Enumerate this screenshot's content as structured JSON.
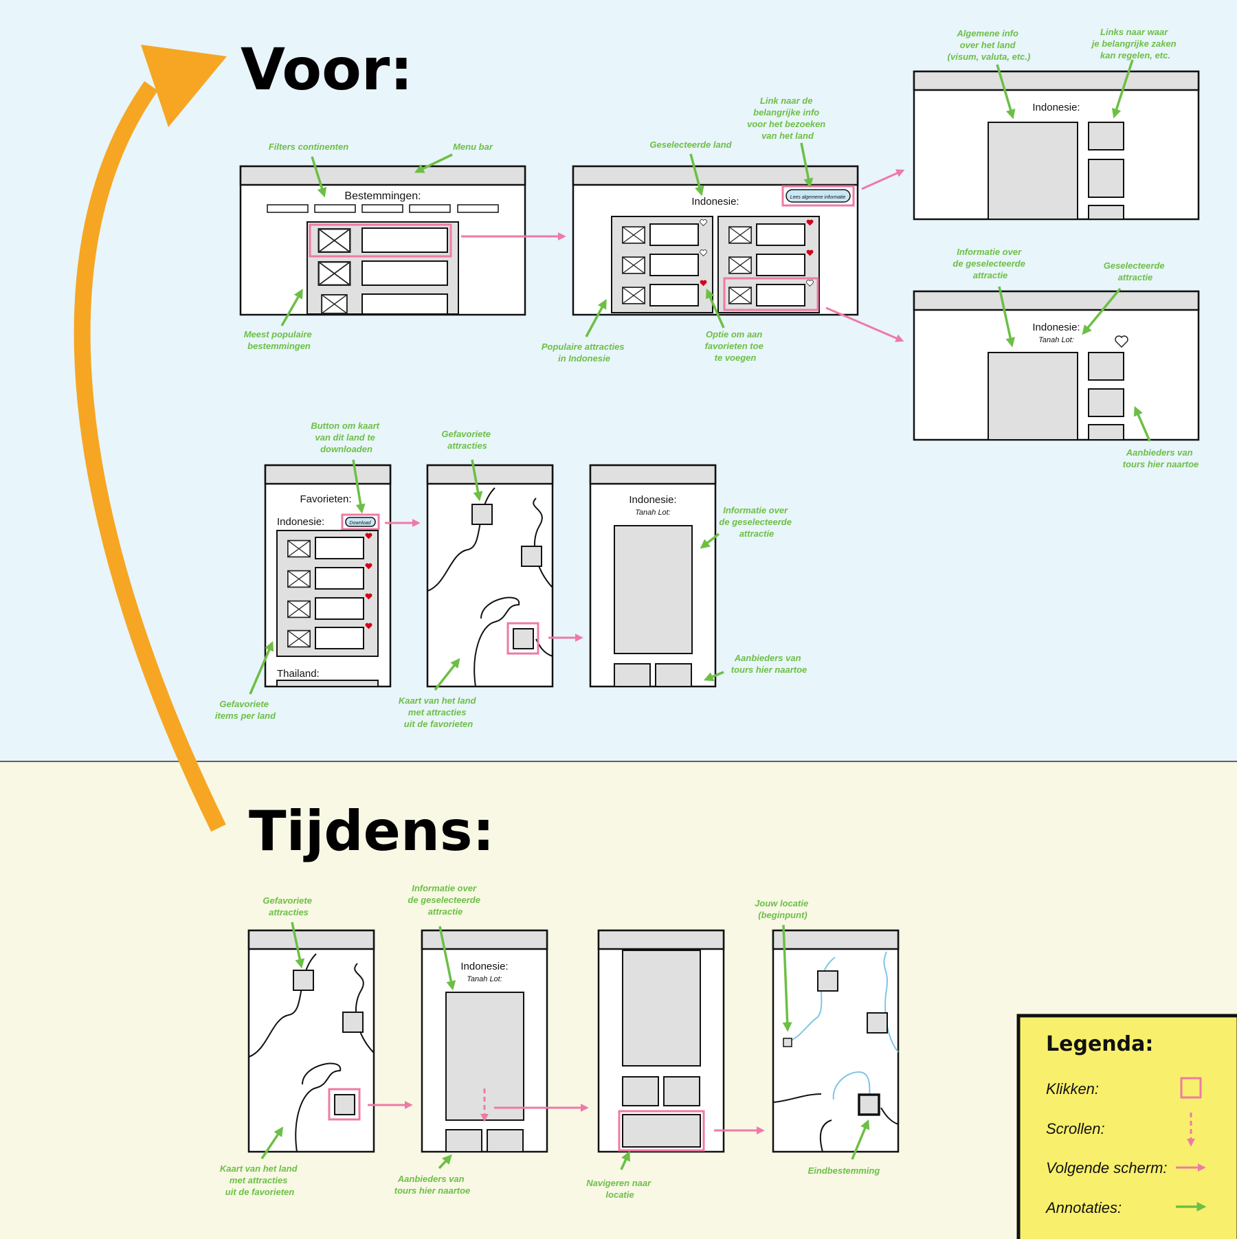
{
  "colors": {
    "top_background": "#e8f5fa",
    "bottom_background": "#f8f8e5",
    "flow_arrow": "#f6a623",
    "click_highlight": "#ee7aa6",
    "next_screen_arrow": "#ee7aa6",
    "annotation": "#6cbf45",
    "legend_background": "#f8f06c",
    "favorite_heart": "#d0021b",
    "route_line": "#7cc6e8",
    "placeholder_fill": "#e0e0e0"
  },
  "sections": {
    "voor": "Voor:",
    "tijdens": "Tijdens:"
  },
  "screens": {
    "bestemmingen_title": "Bestemmingen:",
    "indonesie": "Indonesie:",
    "lees_button": "Lees algemene informatie",
    "tanah_lot": "Tanah Lot:",
    "favorieten": "Favorieten:",
    "download_button": "Download",
    "thailand": "Thailand:"
  },
  "annotations": {
    "filters": [
      "Filters continenten"
    ],
    "menu_bar": [
      "Menu bar"
    ],
    "meest_populaire": [
      "Meest populaire",
      "bestemmingen"
    ],
    "geselecteerde_land": [
      "Geselecteerde land"
    ],
    "link_info": [
      "Link naar de",
      "belangrijke info",
      "voor het bezoeken",
      "van het land"
    ],
    "populaire_attracties": [
      "Populaire attracties",
      "in Indonesie"
    ],
    "optie_favorieten": [
      "Optie om aan",
      "favorieten toe",
      "te voegen"
    ],
    "algemene_info": [
      "Algemene info",
      "over het land",
      "(visum, valuta, etc.)"
    ],
    "links_zaken": [
      "Links naar waar",
      "je belangrijke zaken",
      "kan regelen, etc."
    ],
    "informatie_attractie_top": [
      "Informatie over",
      "de geselecteerde",
      "attractie"
    ],
    "geselecteerde_attractie": [
      "Geselecteerde",
      "attractie"
    ],
    "aanbieders_top": [
      "Aanbieders van",
      "tours hier naartoe"
    ],
    "button_kaart": [
      "Button om kaart",
      "van dit land te",
      "downloaden"
    ],
    "gefavoriete_attracties_mid": [
      "Gefavoriete",
      "attracties"
    ],
    "informatie_attractie_mid": [
      "Informatie over",
      "de geselecteerde",
      "attractie"
    ],
    "aanbieders_mid": [
      "Aanbieders van",
      "tours hier naartoe"
    ],
    "gefavoriete_items": [
      "Gefavoriete",
      "items per land"
    ],
    "kaart_mid": [
      "Kaart van het land",
      "met attracties",
      "uit de favorieten"
    ],
    "gefavoriete_attracties_bottom": [
      "Gefavoriete",
      "attracties"
    ],
    "informatie_attractie_bottom": [
      "Informatie over",
      "de geselecteerde",
      "attractie"
    ],
    "jouw_locatie": [
      "Jouw locatie",
      "(beginpunt)"
    ],
    "kaart_bottom": [
      "Kaart van het land",
      "met attracties",
      "uit de favorieten"
    ],
    "aanbieders_bottom": [
      "Aanbieders van",
      "tours hier naartoe"
    ],
    "navigeren": [
      "Navigeren naar",
      "locatie"
    ],
    "eindbestemming": [
      "Eindbestemming"
    ]
  },
  "legend": {
    "title": "Legenda:",
    "items": [
      "Klikken:",
      "Scrollen:",
      "Volgende scherm:",
      "Annotaties:"
    ]
  }
}
